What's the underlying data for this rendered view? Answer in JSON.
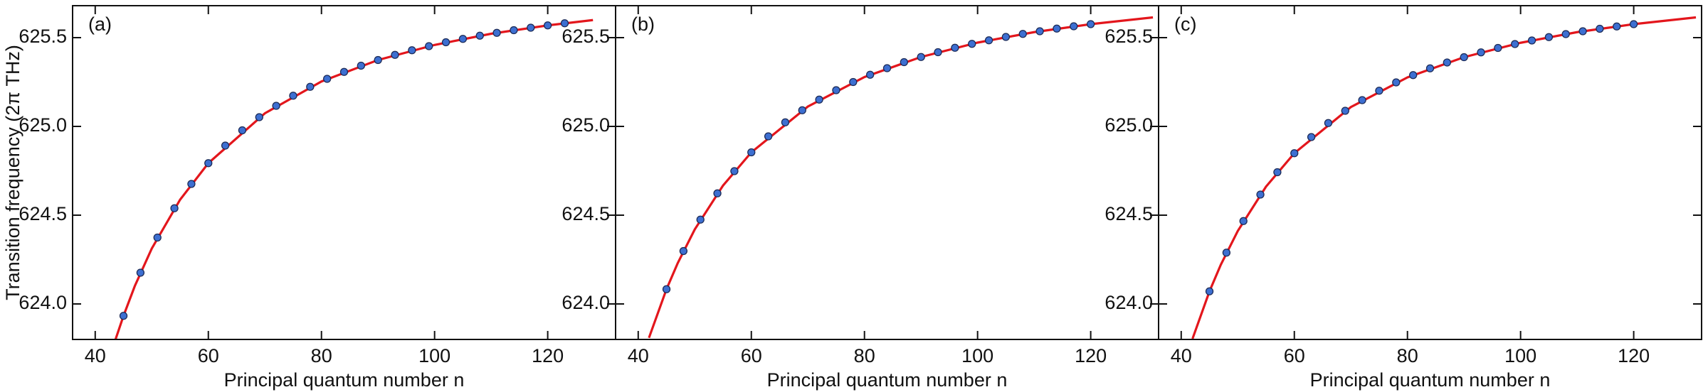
{
  "chart_data": [
    {
      "type": "scatter",
      "panel_label": "(a)",
      "x_label": "Principal quantum number n",
      "y_label": "Transition frequency (2π THz)",
      "xlim": [
        36,
        132
      ],
      "xticks": [
        40,
        60,
        80,
        100,
        120
      ],
      "ylim": [
        623.8,
        625.68
      ],
      "yticks": [
        {
          "value": 624,
          "label": "624.0"
        },
        624.5,
        {
          "value": 625,
          "label": "625.0"
        },
        625.5
      ],
      "series": [
        {
          "mode": "line",
          "color": "#e3161c",
          "x": [
            43.6,
            45,
            47,
            50,
            55,
            60,
            70,
            80,
            90,
            100,
            110,
            120,
            128
          ],
          "values": [
            623.801,
            623.933,
            624.101,
            624.312,
            624.587,
            624.793,
            625.074,
            625.253,
            625.374,
            625.459,
            625.522,
            625.569,
            625.599
          ]
        },
        {
          "mode": "markers",
          "color": "#3d6fd1",
          "x": [
            45,
            48,
            51,
            54,
            57,
            60,
            63,
            66,
            69,
            72,
            75,
            78,
            81,
            84,
            87,
            90,
            93,
            96,
            99,
            102,
            105,
            108,
            111,
            114,
            117,
            120,
            123
          ],
          "values": [
            623.933,
            624.176,
            624.374,
            624.539,
            624.676,
            624.793,
            624.892,
            624.978,
            625.052,
            625.116,
            625.173,
            625.223,
            625.268,
            625.307,
            625.342,
            625.374,
            625.403,
            625.429,
            625.452,
            625.474,
            625.493,
            625.511,
            625.527,
            625.542,
            625.556,
            625.569,
            625.581
          ]
        }
      ]
    },
    {
      "type": "scatter",
      "panel_label": "(b)",
      "x_label": "Principal quantum number n",
      "xlim": [
        36,
        132
      ],
      "xticks": [
        40,
        60,
        80,
        100,
        120
      ],
      "ylim": [
        623.8,
        625.68
      ],
      "yticks": [
        {
          "value": 624,
          "label": "624.0"
        },
        624.5,
        {
          "value": 625,
          "label": "625.0"
        },
        625.5
      ],
      "series": [
        {
          "mode": "line",
          "color": "#e3161c",
          "x": [
            41.9,
            45,
            47,
            50,
            55,
            60,
            70,
            80,
            90,
            100,
            110,
            120,
            131
          ],
          "values": [
            623.809,
            624.083,
            624.231,
            624.42,
            624.667,
            624.854,
            625.112,
            625.278,
            625.391,
            625.472,
            625.531,
            625.576,
            625.614
          ]
        },
        {
          "mode": "markers",
          "color": "#3d6fd1",
          "x": [
            45,
            48,
            51,
            54,
            57,
            60,
            63,
            66,
            69,
            72,
            75,
            78,
            81,
            84,
            87,
            90,
            93,
            96,
            99,
            102,
            105,
            108,
            111,
            114,
            117,
            120
          ],
          "values": [
            624.083,
            624.298,
            624.475,
            624.623,
            624.748,
            624.854,
            624.944,
            625.023,
            625.091,
            625.151,
            625.204,
            625.25,
            625.291,
            625.328,
            625.362,
            625.391,
            625.418,
            625.443,
            625.465,
            625.485,
            625.504,
            625.521,
            625.536,
            625.551,
            625.564,
            625.576
          ]
        }
      ]
    },
    {
      "type": "scatter",
      "panel_label": "(c)",
      "x_label": "Principal quantum number n",
      "xlim": [
        36,
        132
      ],
      "xticks": [
        40,
        60,
        80,
        100,
        120
      ],
      "ylim": [
        623.8,
        625.68
      ],
      "yticks": [
        {
          "value": 624,
          "label": "624.0"
        },
        624.5,
        {
          "value": 625,
          "label": "625.0"
        },
        625.5
      ],
      "series": [
        {
          "mode": "line",
          "color": "#e3161c",
          "x": [
            42,
            45,
            47,
            50,
            55,
            60,
            70,
            80,
            90,
            100,
            110,
            120,
            131
          ],
          "values": [
            623.804,
            624.071,
            624.221,
            624.411,
            624.661,
            624.849,
            625.109,
            625.276,
            625.39,
            625.471,
            625.531,
            625.576,
            625.614
          ]
        },
        {
          "mode": "markers",
          "color": "#3d6fd1",
          "x": [
            45,
            48,
            51,
            54,
            57,
            60,
            63,
            66,
            69,
            72,
            75,
            78,
            81,
            84,
            87,
            90,
            93,
            96,
            99,
            102,
            105,
            108,
            111,
            114,
            117,
            120
          ],
          "values": [
            624.071,
            624.289,
            624.467,
            624.616,
            624.742,
            624.849,
            624.94,
            625.019,
            625.088,
            625.148,
            625.201,
            625.248,
            625.289,
            625.327,
            625.36,
            625.39,
            625.417,
            625.442,
            625.464,
            625.484,
            625.503,
            625.52,
            625.536,
            625.55,
            625.563,
            625.576
          ]
        }
      ]
    }
  ]
}
